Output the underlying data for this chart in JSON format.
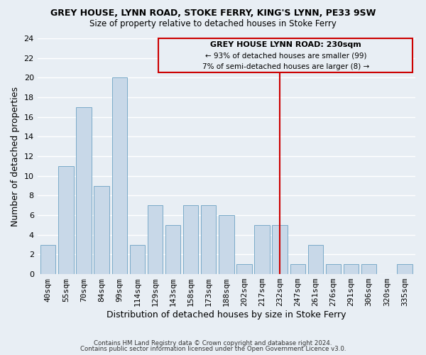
{
  "title": "GREY HOUSE, LYNN ROAD, STOKE FERRY, KING'S LYNN, PE33 9SW",
  "subtitle": "Size of property relative to detached houses in Stoke Ferry",
  "xlabel": "Distribution of detached houses by size in Stoke Ferry",
  "ylabel": "Number of detached properties",
  "bar_color": "#c8d8e8",
  "bar_edge_color": "#7aaac8",
  "categories": [
    "40sqm",
    "55sqm",
    "70sqm",
    "84sqm",
    "99sqm",
    "114sqm",
    "129sqm",
    "143sqm",
    "158sqm",
    "173sqm",
    "188sqm",
    "202sqm",
    "217sqm",
    "232sqm",
    "247sqm",
    "261sqm",
    "276sqm",
    "291sqm",
    "306sqm",
    "320sqm",
    "335sqm"
  ],
  "values": [
    3,
    11,
    17,
    9,
    20,
    3,
    7,
    5,
    7,
    7,
    6,
    1,
    5,
    5,
    1,
    3,
    1,
    1,
    1,
    0,
    1
  ],
  "ylim": [
    0,
    24
  ],
  "yticks": [
    0,
    2,
    4,
    6,
    8,
    10,
    12,
    14,
    16,
    18,
    20,
    22,
    24
  ],
  "property_line_label": "GREY HOUSE LYNN ROAD: 230sqm",
  "annotation_line1": "← 93% of detached houses are smaller (99)",
  "annotation_line2": "7% of semi-detached houses are larger (8) →",
  "footer1": "Contains HM Land Registry data © Crown copyright and database right 2024.",
  "footer2": "Contains public sector information licensed under the Open Government Licence v3.0.",
  "background_color": "#e8eef4",
  "grid_color": "#ffffff",
  "box_color": "#cc0000",
  "property_line_idx": 13
}
